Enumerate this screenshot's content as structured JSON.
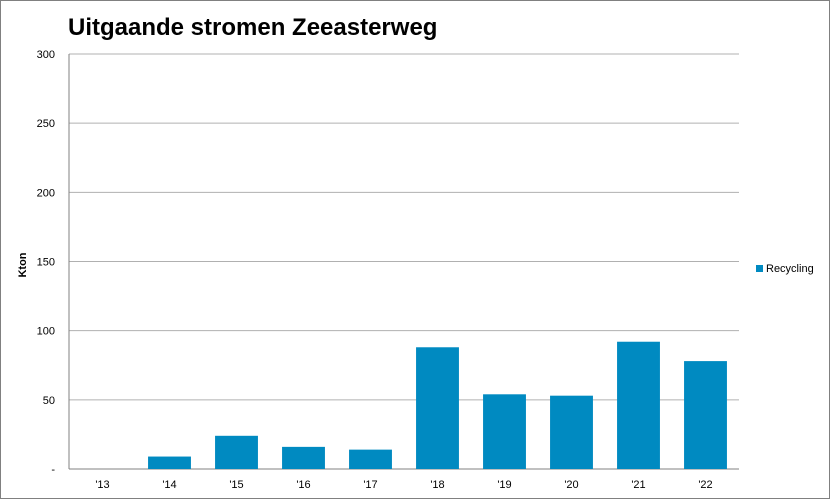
{
  "chart_data": {
    "type": "bar",
    "title": "Uitgaande stromen Zeeasterweg",
    "xlabel": "",
    "ylabel": "Kton",
    "categories": [
      "'13",
      "'14",
      "'15",
      "'16",
      "'17",
      "'18",
      "'19",
      "'20",
      "'21",
      "'22"
    ],
    "series": [
      {
        "name": "Recycling",
        "color": "#008AC1",
        "values": [
          0,
          9,
          24,
          16,
          14,
          88,
          54,
          53,
          92,
          78
        ]
      }
    ],
    "ylim": [
      0,
      300
    ],
    "yticks": [
      0,
      50,
      100,
      150,
      200,
      250,
      300
    ],
    "ytick_labels": [
      "-",
      "50",
      "100",
      "150",
      "200",
      "250",
      "300"
    ],
    "grid": true,
    "legend_position": "right"
  }
}
